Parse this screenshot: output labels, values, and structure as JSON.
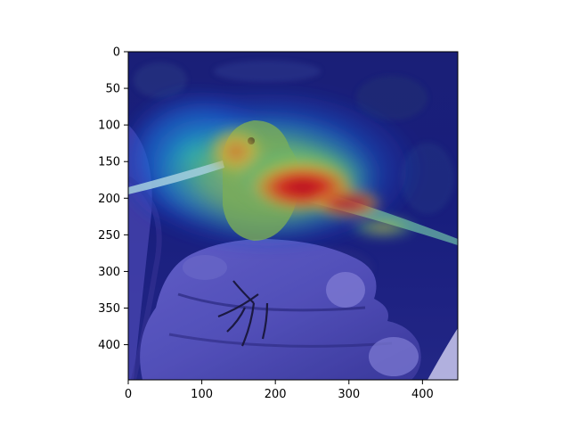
{
  "figure": {
    "image_description_icon": "bird-perched-on-hand-with-attention-heatmap-overlay",
    "colormap": "jet",
    "x_axis": {
      "range": [
        0,
        448
      ],
      "ticks": [
        {
          "value": 0,
          "label": "0"
        },
        {
          "value": 100,
          "label": "100"
        },
        {
          "value": 200,
          "label": "200"
        },
        {
          "value": 300,
          "label": "300"
        },
        {
          "value": 400,
          "label": "400"
        }
      ]
    },
    "y_axis": {
      "range": [
        0,
        448
      ],
      "inverted": true,
      "ticks": [
        {
          "value": 0,
          "label": "0"
        },
        {
          "value": 50,
          "label": "50"
        },
        {
          "value": 100,
          "label": "100"
        },
        {
          "value": 150,
          "label": "150"
        },
        {
          "value": 200,
          "label": "200"
        },
        {
          "value": 250,
          "label": "250"
        },
        {
          "value": 300,
          "label": "300"
        },
        {
          "value": 350,
          "label": "350"
        },
        {
          "value": 400,
          "label": "400"
        }
      ]
    }
  }
}
